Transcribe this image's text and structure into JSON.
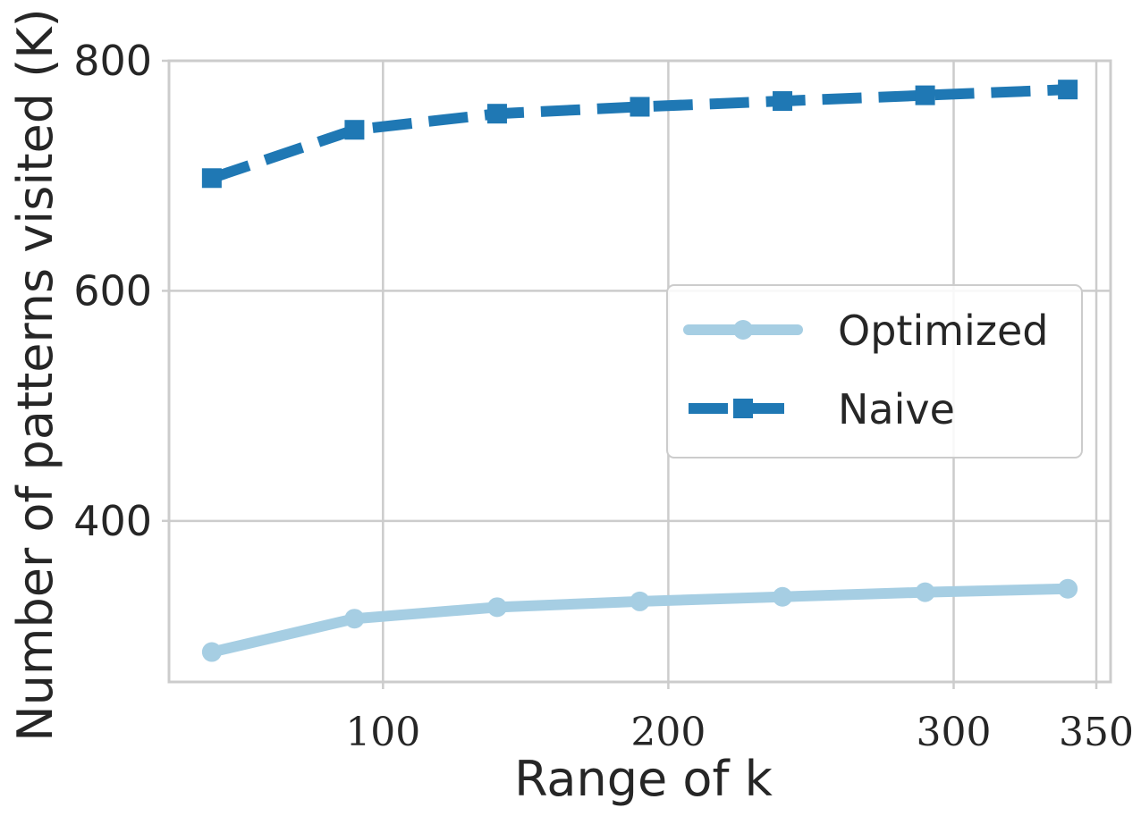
{
  "chart_data": {
    "type": "line",
    "title": "",
    "xlabel": "Range of k",
    "ylabel": "Number of patterns visited (K)",
    "xlim": [
      25,
      355
    ],
    "ylim": [
      260,
      800
    ],
    "xticks": [
      100,
      200,
      300,
      350
    ],
    "yticks": [
      400,
      600,
      800
    ],
    "grid": true,
    "legend_position": "center-right",
    "x": [
      40,
      90,
      140,
      190,
      240,
      290,
      340
    ],
    "series": [
      {
        "name": "Optimized",
        "values": [
          286,
          315,
          325,
          330,
          334,
          338,
          341
        ],
        "color": "#a6cee3",
        "marker": "circle",
        "line_style": "solid"
      },
      {
        "name": "Naive",
        "values": [
          698,
          740,
          754,
          760,
          765,
          770,
          775
        ],
        "color": "#1f78b4",
        "marker": "square",
        "line_style": "dashed"
      }
    ]
  }
}
